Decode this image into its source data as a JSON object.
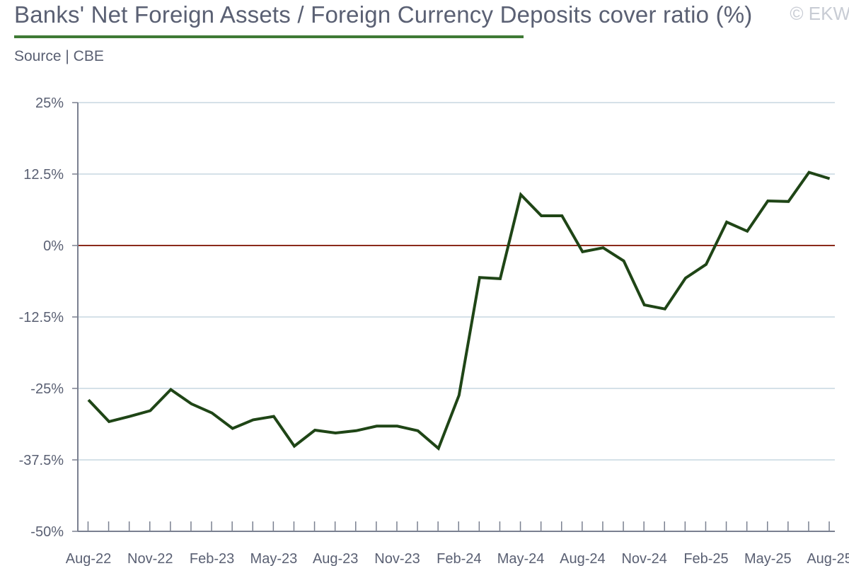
{
  "title": "Banks' Net Foreign Assets / Foreign Currency Deposits cover ratio (%)",
  "source": "Source | CBE",
  "watermark": "© EKW",
  "colors": {
    "line": "#1f4516",
    "zero_line": "#8b2a1a",
    "grid": "#d5e1e8",
    "title_rule": "#3f7a35",
    "text": "#5a6073"
  },
  "chart_data": {
    "type": "line",
    "ylim": [
      -50,
      25
    ],
    "y_ticks": [
      25,
      12.5,
      0,
      -12.5,
      -25,
      -37.5,
      -50
    ],
    "y_tick_labels": [
      "25%",
      "12.5%",
      "0%",
      "-12.5%",
      "-25%",
      "-37.5%",
      "-50%"
    ],
    "x_tick_labels": [
      "Aug-22",
      "Nov-22",
      "Feb-23",
      "May-23",
      "Aug-23",
      "Nov-23",
      "Feb-24",
      "May-24",
      "Aug-24",
      "Nov-24",
      "Feb-25",
      "May-25",
      "Aug-25"
    ],
    "grid": true,
    "reference_line": 0,
    "x": [
      "Aug-22",
      "Sep-22",
      "Oct-22",
      "Nov-22",
      "Dec-22",
      "Jan-23",
      "Feb-23",
      "Mar-23",
      "Apr-23",
      "May-23",
      "Jun-23",
      "Jul-23",
      "Aug-23",
      "Sep-23",
      "Oct-23",
      "Nov-23",
      "Dec-23",
      "Jan-24",
      "Feb-24",
      "Mar-24",
      "Apr-24",
      "May-24",
      "Jun-24",
      "Jul-24",
      "Aug-24",
      "Sep-24",
      "Oct-24",
      "Nov-24",
      "Dec-24",
      "Jan-25",
      "Feb-25",
      "Mar-25",
      "Apr-25",
      "May-25",
      "Jun-25",
      "Jul-25",
      "Aug-25"
    ],
    "values": [
      -27.0,
      -30.8,
      -29.9,
      -28.9,
      -25.2,
      -27.7,
      -29.3,
      -32.0,
      -30.5,
      -29.9,
      -35.1,
      -32.3,
      -32.8,
      -32.4,
      -31.6,
      -31.6,
      -32.4,
      -35.5,
      -26.2,
      -5.6,
      -5.8,
      8.9,
      5.2,
      5.2,
      -1.1,
      -0.4,
      -2.7,
      -10.4,
      -11.1,
      -5.7,
      -3.3,
      4.1,
      2.5,
      7.8,
      7.7,
      12.8,
      11.7
    ]
  }
}
